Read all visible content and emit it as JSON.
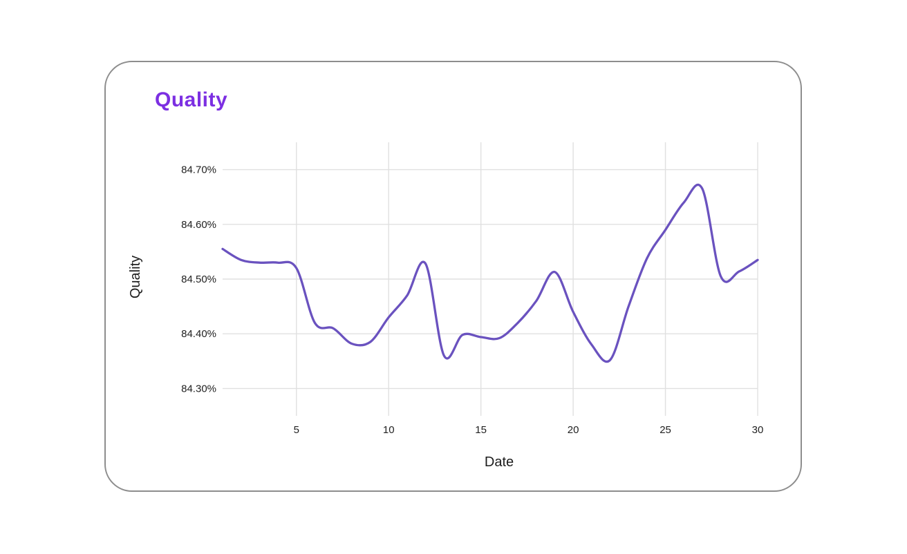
{
  "card": {
    "title": "Quality"
  },
  "chart_data": {
    "type": "line",
    "title": "Quality",
    "xlabel": "Date",
    "ylabel": "Quality",
    "x": [
      1,
      2,
      3,
      4,
      5,
      6,
      7,
      8,
      9,
      10,
      11,
      12,
      13,
      14,
      15,
      16,
      17,
      18,
      19,
      20,
      21,
      22,
      23,
      24,
      25,
      26,
      27,
      28,
      29,
      30
    ],
    "series": [
      {
        "name": "Quality",
        "values": [
          84.555,
          84.535,
          84.53,
          84.53,
          84.52,
          84.42,
          84.41,
          84.382,
          84.385,
          84.43,
          84.47,
          84.528,
          84.36,
          84.398,
          84.394,
          84.392,
          84.42,
          84.46,
          84.513,
          84.44,
          84.38,
          84.352,
          84.45,
          84.538,
          84.59,
          84.64,
          84.665,
          84.505,
          84.514,
          84.535
        ]
      }
    ],
    "xlim": [
      1,
      30
    ],
    "ylim": [
      84.25,
      84.75
    ],
    "x_ticks": [
      {
        "value": 5,
        "label": "5"
      },
      {
        "value": 10,
        "label": "10"
      },
      {
        "value": 15,
        "label": "15"
      },
      {
        "value": 20,
        "label": "20"
      },
      {
        "value": 25,
        "label": "25"
      },
      {
        "value": 30,
        "label": "30"
      }
    ],
    "y_ticks": [
      {
        "value": 84.7,
        "label": "84.70%"
      },
      {
        "value": 84.6,
        "label": "84.60%"
      },
      {
        "value": 84.5,
        "label": "84.50%"
      },
      {
        "value": 84.4,
        "label": "84.40%"
      },
      {
        "value": 84.3,
        "label": "84.30%"
      }
    ],
    "grid": true,
    "legend": false,
    "curve": "smooth"
  },
  "colors": {
    "line": "#6a52bf",
    "grid": "#e0e0e0",
    "title": "#7c2fe2",
    "axis_text": "#212121",
    "card_border": "#8d8d8d",
    "background": "#ffffff"
  }
}
